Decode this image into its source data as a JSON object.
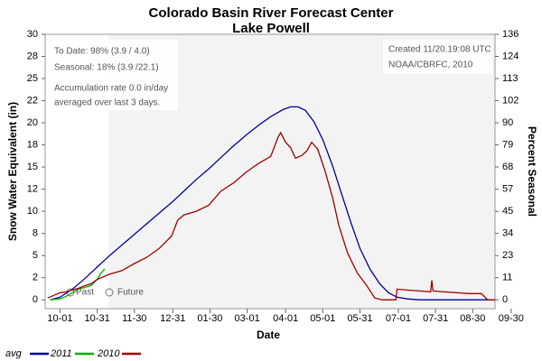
{
  "chart_data": {
    "type": "line",
    "title": "Colorado Basin River Forecast Center",
    "subtitle": "Lake Powell",
    "xlabel": "Date",
    "ylabel": "Snow Water Equivalent (in)",
    "y2label": "Percent Seasonal",
    "annotations": [
      "To Date: 98% (3.9 / 4.0)",
      "Seasonal: 18% (3.9 /22.1)",
      "Accumulation rate 0.0 in/day",
      "averaged over last 3 days.",
      "Created 11/20.19:08 UTC",
      "NOAA/CBRFC, 2010",
      "Past",
      "Future"
    ],
    "future_from": 39,
    "xlim": [
      -12,
      351
    ],
    "xticks": [
      {
        "value": 0,
        "label": "10-01"
      },
      {
        "value": 30,
        "label": "10-31"
      },
      {
        "value": 60,
        "label": "11-30"
      },
      {
        "value": 91,
        "label": "12-31"
      },
      {
        "value": 121,
        "label": "01-30"
      },
      {
        "value": 151,
        "label": "03-01"
      },
      {
        "value": 182,
        "label": "04-01"
      },
      {
        "value": 212,
        "label": "05-01"
      },
      {
        "value": 242,
        "label": "05-31"
      },
      {
        "value": 273,
        "label": "07-01"
      },
      {
        "value": 303,
        "label": "07-31"
      },
      {
        "value": 333,
        "label": "08-30"
      },
      {
        "value": 364,
        "label": "09-30"
      }
    ],
    "ylim": [
      -1,
      30
    ],
    "yticks": [
      0,
      {
        "value": 2.5,
        "label": "2"
      },
      5,
      {
        "value": 7.5,
        "label": "8"
      },
      10,
      {
        "value": 12.5,
        "label": "12"
      },
      15,
      {
        "value": 17.5,
        "label": "18"
      },
      20,
      {
        "value": 22.5,
        "label": "22"
      },
      25,
      {
        "value": 27.5,
        "label": "28"
      },
      30
    ],
    "y2lim": [
      -4.5,
      135.7
    ],
    "y2ticks": [
      0,
      {
        "value": 11.3,
        "label": "11"
      },
      {
        "value": 22.6,
        "label": "23"
      },
      34,
      {
        "value": 45.2,
        "label": "45"
      },
      {
        "value": 56.6,
        "label": "57"
      },
      {
        "value": 67.9,
        "label": "68"
      },
      {
        "value": 79.2,
        "label": "79"
      },
      {
        "value": 90.5,
        "label": "90"
      },
      {
        "value": 101.8,
        "label": "102"
      },
      {
        "value": 113.1,
        "label": "113"
      },
      {
        "value": 124.4,
        "label": "124"
      },
      {
        "value": 135.7,
        "label": "136"
      }
    ],
    "series": [
      {
        "name": "avg",
        "color": "#0000a0",
        "x": [
          -8,
          0,
          10,
          20,
          30,
          40,
          50,
          60,
          70,
          80,
          91,
          100,
          110,
          120,
          130,
          140,
          151,
          160,
          170,
          180,
          186,
          192,
          198,
          205,
          212,
          220,
          228,
          235,
          242,
          250,
          258,
          265,
          272,
          280,
          290,
          351
        ],
        "values": [
          0,
          0.3,
          1.2,
          2.4,
          3.7,
          5.0,
          6.2,
          7.4,
          8.6,
          9.8,
          11.1,
          12.3,
          13.6,
          14.8,
          16.1,
          17.4,
          18.7,
          19.7,
          20.7,
          21.5,
          21.8,
          21.8,
          21.4,
          20.1,
          18.1,
          15.1,
          11.6,
          8.6,
          5.8,
          3.5,
          1.8,
          0.8,
          0.3,
          0.1,
          0,
          0
        ]
      },
      {
        "name": "2011",
        "color": "#00b000",
        "x": [
          -8,
          0,
          5,
          10,
          15,
          20,
          25,
          30,
          33,
          36
        ],
        "values": [
          0,
          0.1,
          0.4,
          0.8,
          1.2,
          1.4,
          1.6,
          2.3,
          3.0,
          3.5
        ]
      },
      {
        "name": "2010",
        "color": "#a00000",
        "x": [
          -10,
          -5,
          0,
          5,
          10,
          15,
          20,
          25,
          30,
          40,
          50,
          60,
          70,
          80,
          90,
          95,
          100,
          110,
          120,
          130,
          140,
          150,
          160,
          165,
          170,
          176,
          178,
          182,
          186,
          190,
          195,
          199,
          203,
          208,
          214,
          220,
          225,
          232,
          240,
          247,
          254,
          260,
          271,
          272,
          280,
          290,
          299,
          300,
          301,
          310,
          320,
          330,
          340,
          345,
          351
        ],
        "values": [
          0.2,
          0.5,
          0.8,
          0.9,
          1.1,
          1.3,
          1.6,
          1.8,
          2.3,
          2.9,
          3.3,
          4.1,
          4.8,
          5.8,
          7.2,
          9.0,
          9.6,
          10.0,
          10.7,
          12.3,
          13.2,
          14.4,
          15.4,
          15.8,
          16.2,
          18.4,
          18.9,
          17.8,
          17.2,
          16.0,
          16.3,
          16.8,
          17.8,
          17.0,
          14.5,
          11.5,
          8.4,
          5.3,
          3.0,
          1.7,
          0.2,
          0,
          0,
          1.2,
          1.1,
          1.0,
          0.9,
          2.2,
          1.0,
          0.9,
          0.8,
          0.7,
          0.7,
          0,
          0
        ]
      }
    ]
  }
}
